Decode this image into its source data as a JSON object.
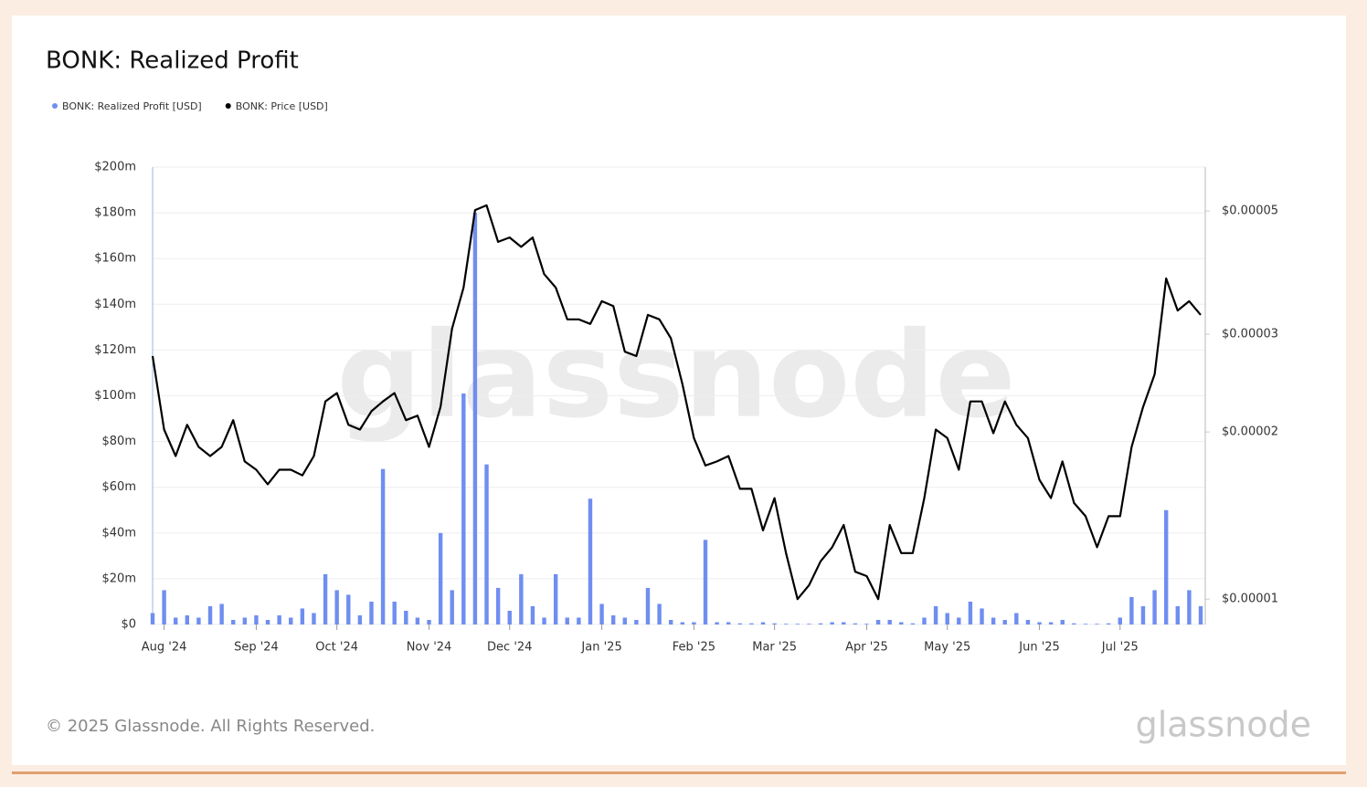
{
  "chart_data": {
    "type": "combo",
    "title": "BONK: Realized Profit",
    "watermark": "glassnode",
    "logo": "glassnode",
    "footer": "© 2025 Glassnode. All Rights Reserved.",
    "legend": "top-left",
    "grid": true,
    "y2scale": "log",
    "categories": [
      null,
      "Aug '24",
      null,
      null,
      null,
      null,
      null,
      null,
      null,
      "Sep '24",
      null,
      null,
      null,
      null,
      null,
      null,
      "Oct '24",
      null,
      null,
      null,
      null,
      null,
      null,
      null,
      "Nov '24",
      null,
      null,
      null,
      null,
      null,
      null,
      "Dec '24",
      null,
      null,
      null,
      null,
      null,
      null,
      null,
      "Jan '25",
      null,
      null,
      null,
      null,
      null,
      null,
      null,
      "Feb '25",
      null,
      null,
      null,
      null,
      null,
      null,
      "Mar '25",
      null,
      null,
      null,
      null,
      null,
      null,
      null,
      "Apr '25",
      null,
      null,
      null,
      null,
      null,
      null,
      "May '25",
      null,
      null,
      null,
      null,
      null,
      null,
      null,
      "Jun '25",
      null,
      null,
      null,
      null,
      null,
      null,
      "Jul '25",
      null,
      null,
      null,
      null,
      null,
      null,
      null
    ],
    "ylim": [
      0,
      200000000
    ],
    "yticks": [
      {
        "value": 0,
        "label": "$0"
      },
      {
        "value": 20000000,
        "label": "$20m"
      },
      {
        "value": 40000000,
        "label": "$40m"
      },
      {
        "value": 60000000,
        "label": "$60m"
      },
      {
        "value": 80000000,
        "label": "$80m"
      },
      {
        "value": 100000000,
        "label": "$100m"
      },
      {
        "value": 120000000,
        "label": "$120m"
      },
      {
        "value": 140000000,
        "label": "$140m"
      },
      {
        "value": 160000000,
        "label": "$160m"
      },
      {
        "value": 180000000,
        "label": "$180m"
      },
      {
        "value": 200000000,
        "label": "$200m"
      }
    ],
    "y2lim": [
      9e-06,
      6e-05
    ],
    "y2ticks": [
      {
        "value": 1e-05,
        "label": "$0.00001"
      },
      {
        "value": 2e-05,
        "label": "$0.00002"
      },
      {
        "value": 3e-05,
        "label": "$0.00003"
      },
      {
        "value": 5e-05,
        "label": "$0.00005"
      }
    ],
    "series": [
      {
        "name": "BONK: Realized Profit [USD]",
        "type": "bar",
        "color": "#6f8ef0",
        "axis": "y",
        "values": [
          5000000,
          15000000,
          3000000,
          4000000,
          3000000,
          8000000,
          9000000,
          2000000,
          3000000,
          4000000,
          2000000,
          4000000,
          3000000,
          7000000,
          5000000,
          22000000,
          15000000,
          13000000,
          4000000,
          10000000,
          68000000,
          10000000,
          6000000,
          3000000,
          2000000,
          40000000,
          15000000,
          101000000,
          180000000,
          70000000,
          16000000,
          6000000,
          22000000,
          8000000,
          3000000,
          22000000,
          3000000,
          3000000,
          55000000,
          9000000,
          4000000,
          3000000,
          2000000,
          16000000,
          9000000,
          2000000,
          1000000,
          1000000,
          37000000,
          1000000,
          1000000,
          500000,
          500000,
          1000000,
          500000,
          300000,
          300000,
          300000,
          500000,
          1000000,
          1000000,
          500000,
          300000,
          2000000,
          2000000,
          1000000,
          500000,
          3000000,
          8000000,
          5000000,
          3000000,
          10000000,
          7000000,
          3000000,
          2000000,
          5000000,
          2000000,
          1000000,
          1000000,
          2000000,
          500000,
          300000,
          300000,
          500000,
          3000000,
          12000000,
          8000000,
          15000000,
          50000000,
          8000000,
          15000000,
          8000000
        ]
      },
      {
        "name": "BONK: Price [USD]",
        "type": "line",
        "color": "#000000",
        "axis": "y2",
        "values": [
          2.74e-05,
          2.02e-05,
          1.81e-05,
          2.06e-05,
          1.88e-05,
          1.81e-05,
          1.88e-05,
          2.1e-05,
          1.77e-05,
          1.71e-05,
          1.61e-05,
          1.71e-05,
          1.71e-05,
          1.67e-05,
          1.81e-05,
          2.27e-05,
          2.35e-05,
          2.06e-05,
          2.02e-05,
          2.18e-05,
          2.27e-05,
          2.35e-05,
          2.1e-05,
          2.14e-05,
          1.88e-05,
          2.22e-05,
          3.07e-05,
          3.64e-05,
          5.02e-05,
          5.12e-05,
          4.4e-05,
          4.48e-05,
          4.31e-05,
          4.48e-05,
          3.85e-05,
          3.64e-05,
          3.19e-05,
          3.19e-05,
          3.13e-05,
          3.44e-05,
          3.37e-05,
          2.79e-05,
          2.74e-05,
          3.25e-05,
          3.19e-05,
          2.95e-05,
          2.44e-05,
          1.95e-05,
          1.74e-05,
          1.77e-05,
          1.81e-05,
          1.58e-05,
          1.58e-05,
          1.33e-05,
          1.52e-05,
          1.21e-05,
          1e-05,
          1.06e-05,
          1.17e-05,
          1.24e-05,
          1.36e-05,
          1.12e-05,
          1.1e-05,
          1e-05,
          1.36e-05,
          1.21e-05,
          1.21e-05,
          1.52e-05,
          2.02e-05,
          1.95e-05,
          1.71e-05,
          2.27e-05,
          2.27e-05,
          1.99e-05,
          2.27e-05,
          2.06e-05,
          1.95e-05,
          1.64e-05,
          1.52e-05,
          1.77e-05,
          1.49e-05,
          1.41e-05,
          1.24e-05,
          1.41e-05,
          1.41e-05,
          1.88e-05,
          2.22e-05,
          2.54e-05,
          3.78e-05,
          3.31e-05,
          3.44e-05,
          3.25e-05
        ]
      }
    ]
  }
}
